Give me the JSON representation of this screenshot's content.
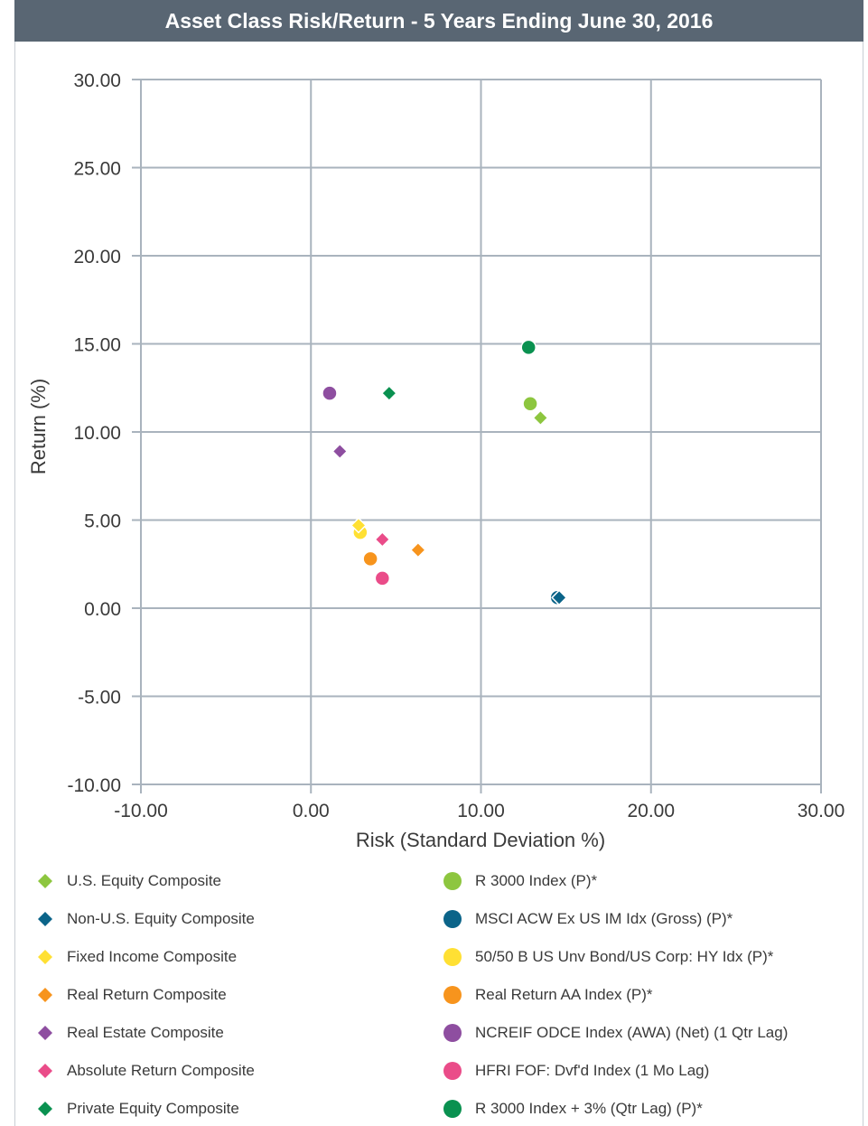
{
  "title": "Asset Class Risk/Return - 5 Years Ending June 30, 2016",
  "chart_data": {
    "type": "scatter",
    "title": "Asset Class Risk/Return - 5 Years Ending June 30, 2016",
    "xlabel": "Risk (Standard Deviation %)",
    "ylabel": "Return (%)",
    "xlim": [
      -10,
      30
    ],
    "ylim": [
      -10,
      30
    ],
    "xticks": [
      "-10.00",
      "0.00",
      "10.00",
      "20.00",
      "30.00"
    ],
    "yticks": [
      "30.00",
      "25.00",
      "20.00",
      "15.00",
      "10.00",
      "5.00",
      "0.00",
      "-5.00",
      "-10.00"
    ],
    "grid": true,
    "legend_position": "bottom",
    "series": [
      {
        "name": "U.S. Equity Composite",
        "marker": "diamond",
        "color": "#8DC63F",
        "x": 13.5,
        "y": 10.8
      },
      {
        "name": "Non-U.S. Equity Composite",
        "marker": "diamond",
        "color": "#0B6489",
        "x": 14.6,
        "y": 0.6
      },
      {
        "name": "Fixed Income Composite",
        "marker": "diamond",
        "color": "#FFE033",
        "x": 2.8,
        "y": 4.7
      },
      {
        "name": "Real Return Composite",
        "marker": "diamond",
        "color": "#F7941D",
        "x": 6.3,
        "y": 3.3
      },
      {
        "name": "Real Estate Composite",
        "marker": "diamond",
        "color": "#8E4EA0",
        "x": 1.7,
        "y": 8.9
      },
      {
        "name": "Absolute Return Composite",
        "marker": "diamond",
        "color": "#EA4C89",
        "x": 4.2,
        "y": 3.9
      },
      {
        "name": "Private Equity Composite",
        "marker": "diamond",
        "color": "#0A9150",
        "x": 4.6,
        "y": 12.2
      },
      {
        "name": "R 3000 Index (P)*",
        "marker": "circle",
        "color": "#8DC63F",
        "x": 12.9,
        "y": 11.6
      },
      {
        "name": "MSCI ACW Ex US IM Idx (Gross) (P)*",
        "marker": "circle",
        "color": "#0B6489",
        "x": 14.5,
        "y": 0.6
      },
      {
        "name": "50/50 B US Unv Bond/US Corp: HY Idx (P)*",
        "marker": "circle",
        "color": "#FFE033",
        "x": 2.9,
        "y": 4.3
      },
      {
        "name": "Real Return AA Index (P)*",
        "marker": "circle",
        "color": "#F7941D",
        "x": 3.5,
        "y": 2.8
      },
      {
        "name": "NCREIF ODCE Index (AWA) (Net) (1 Qtr Lag)",
        "marker": "circle",
        "color": "#8E4EA0",
        "x": 1.1,
        "y": 12.2
      },
      {
        "name": "HFRI FOF: Dvf'd Index (1 Mo Lag)",
        "marker": "circle",
        "color": "#EA4C89",
        "x": 4.2,
        "y": 1.7
      },
      {
        "name": "R 3000 Index + 3% (Qtr Lag) (P)*",
        "marker": "circle",
        "color": "#0A9150",
        "x": 12.8,
        "y": 14.8
      }
    ]
  }
}
